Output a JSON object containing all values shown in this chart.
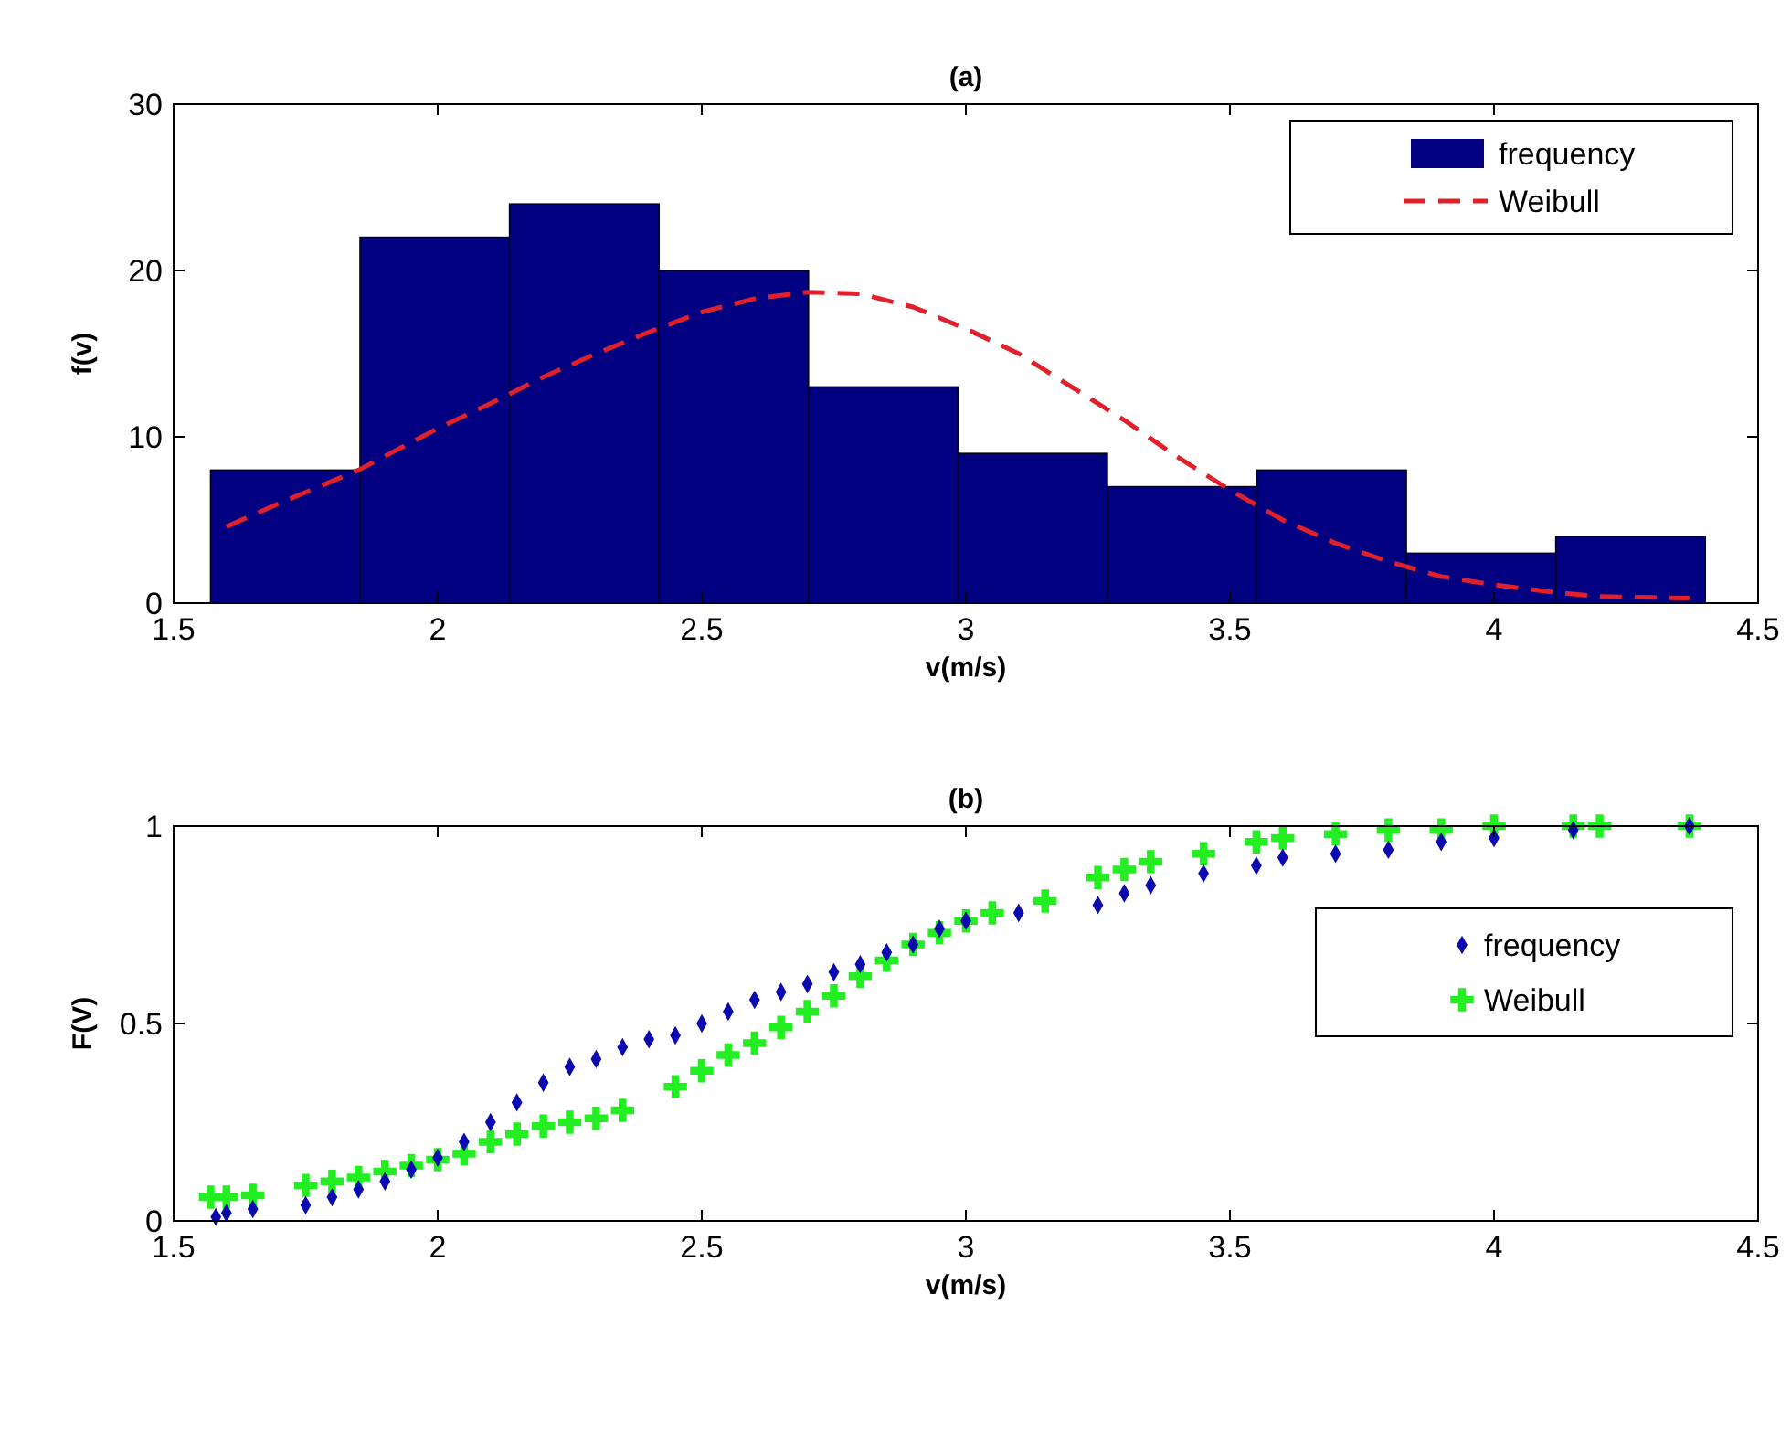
{
  "chart_data": [
    {
      "type": "histogram",
      "title": "(a)",
      "xlabel": "v(m/s)",
      "ylabel": "f(v)",
      "bins": [
        1.57,
        1.853,
        2.136,
        2.419,
        2.702,
        2.985,
        3.268,
        3.551,
        3.834,
        4.117,
        4.4
      ],
      "series": [
        {
          "name": "frequency",
          "color": "#000080",
          "values": [
            8,
            22,
            24,
            20,
            13,
            9,
            7,
            8,
            3,
            4
          ]
        },
        {
          "name": "Weibull",
          "type": "line",
          "color": "#e0202a",
          "line_style": "dashed",
          "marker": "none",
          "x": [
            1.6,
            1.7,
            1.85,
            2.0,
            2.1,
            2.2,
            2.3,
            2.4,
            2.5,
            2.6,
            2.7,
            2.8,
            2.9,
            3.0,
            3.1,
            3.2,
            3.3,
            3.4,
            3.5,
            3.6,
            3.7,
            3.8,
            3.9,
            4.0,
            4.1,
            4.2,
            4.37
          ],
          "values": [
            4.6,
            6,
            8,
            10.5,
            12,
            13.6,
            15,
            16.3,
            17.5,
            18.3,
            18.7,
            18.6,
            17.8,
            16.5,
            15,
            13,
            11,
            8.8,
            6.8,
            5,
            3.6,
            2.5,
            1.6,
            1.1,
            0.7,
            0.4,
            0.3
          ]
        }
      ],
      "xlim": [
        1.5,
        4.5
      ],
      "ylim": [
        0,
        30
      ],
      "xticks": [
        1.5,
        2,
        2.5,
        3,
        3.5,
        4,
        4.5
      ],
      "yticks": [
        0,
        10,
        20,
        30
      ],
      "legend": "top right",
      "grid": false
    },
    {
      "type": "scatter",
      "title": "(b)",
      "xlabel": "v(m/s)",
      "ylabel": "F(V)",
      "series": [
        {
          "name": "frequency",
          "color": "#0a0ab0",
          "marker": "diamond",
          "x": [
            1.58,
            1.6,
            1.65,
            1.75,
            1.8,
            1.85,
            1.9,
            1.95,
            2.0,
            2.05,
            2.1,
            2.15,
            2.2,
            2.25,
            2.3,
            2.35,
            2.4,
            2.45,
            2.5,
            2.55,
            2.6,
            2.65,
            2.7,
            2.75,
            2.8,
            2.85,
            2.9,
            2.95,
            3.0,
            3.1,
            3.25,
            3.3,
            3.35,
            3.45,
            3.55,
            3.6,
            3.7,
            3.8,
            3.9,
            4.0,
            4.15,
            4.37
          ],
          "values": [
            0.01,
            0.02,
            0.03,
            0.04,
            0.06,
            0.08,
            0.1,
            0.13,
            0.16,
            0.2,
            0.25,
            0.3,
            0.35,
            0.39,
            0.41,
            0.44,
            0.46,
            0.47,
            0.5,
            0.53,
            0.56,
            0.58,
            0.6,
            0.63,
            0.65,
            0.68,
            0.7,
            0.74,
            0.76,
            0.78,
            0.8,
            0.83,
            0.85,
            0.88,
            0.9,
            0.92,
            0.93,
            0.94,
            0.96,
            0.97,
            0.99,
            1.0
          ]
        },
        {
          "name": "Weibull",
          "color": "#22ee22",
          "marker": "cross",
          "x": [
            1.57,
            1.6,
            1.65,
            1.75,
            1.8,
            1.85,
            1.9,
            1.95,
            2.0,
            2.05,
            2.1,
            2.15,
            2.2,
            2.25,
            2.3,
            2.35,
            2.45,
            2.5,
            2.55,
            2.6,
            2.65,
            2.7,
            2.75,
            2.8,
            2.85,
            2.9,
            2.95,
            3.0,
            3.05,
            3.15,
            3.25,
            3.3,
            3.35,
            3.45,
            3.55,
            3.6,
            3.7,
            3.8,
            3.9,
            4.0,
            4.15,
            4.2,
            4.37
          ],
          "values": [
            0.06,
            0.06,
            0.065,
            0.09,
            0.1,
            0.11,
            0.125,
            0.14,
            0.155,
            0.17,
            0.2,
            0.22,
            0.24,
            0.25,
            0.26,
            0.28,
            0.34,
            0.38,
            0.42,
            0.45,
            0.49,
            0.53,
            0.57,
            0.62,
            0.66,
            0.7,
            0.73,
            0.76,
            0.78,
            0.81,
            0.87,
            0.89,
            0.91,
            0.93,
            0.96,
            0.97,
            0.98,
            0.99,
            0.99,
            1.0,
            1.0,
            1.0,
            1.0
          ]
        }
      ],
      "xlim": [
        1.5,
        4.5
      ],
      "ylim": [
        0,
        1
      ],
      "xticks": [
        1.5,
        2,
        2.5,
        3,
        3.5,
        4,
        4.5
      ],
      "yticks": [
        0,
        0.5,
        1
      ],
      "legend": "right",
      "grid": false
    }
  ]
}
